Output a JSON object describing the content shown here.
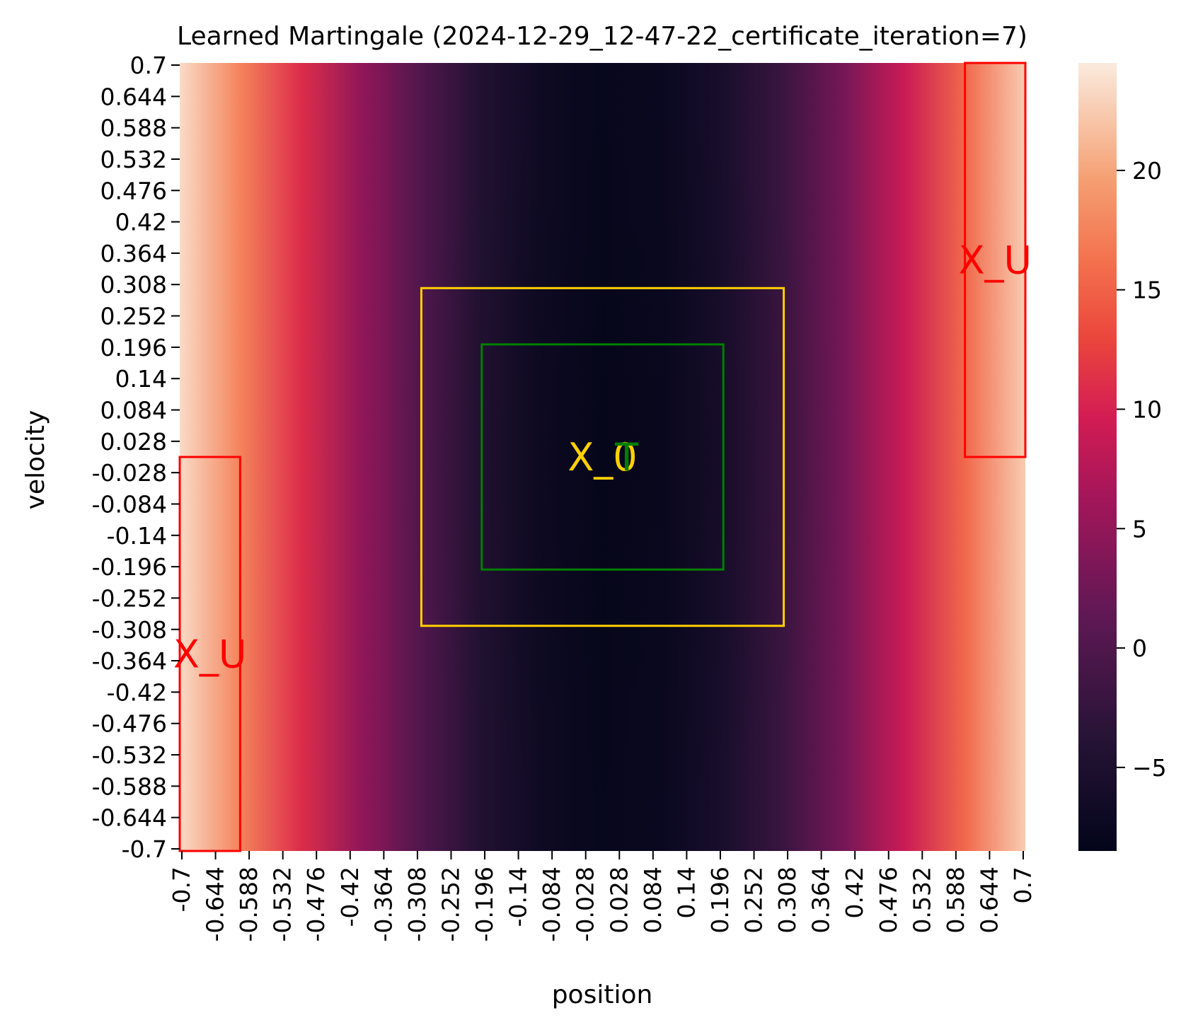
{
  "chart_data": {
    "type": "heatmap",
    "title": "Learned Martingale (2024-12-29_12-47-22_certificate_iteration=7)",
    "xlabel": "position",
    "ylabel": "velocity",
    "x_ticks": [
      "-0.7",
      "-0.644",
      "-0.588",
      "-0.532",
      "-0.476",
      "-0.42",
      "-0.364",
      "-0.308",
      "-0.252",
      "-0.196",
      "-0.14",
      "-0.084",
      "-0.028",
      "0.028",
      "0.084",
      "0.14",
      "0.196",
      "0.252",
      "0.308",
      "0.364",
      "0.42",
      "0.476",
      "0.532",
      "0.588",
      "0.644",
      "0.7"
    ],
    "y_ticks": [
      "0.7",
      "0.644",
      "0.588",
      "0.532",
      "0.476",
      "0.42",
      "0.364",
      "0.308",
      "0.252",
      "0.196",
      "0.14",
      "0.084",
      "0.028",
      "-0.028",
      "-0.084",
      "-0.14",
      "-0.196",
      "-0.252",
      "-0.308",
      "-0.364",
      "-0.42",
      "-0.476",
      "-0.532",
      "-0.588",
      "-0.644",
      "-0.7"
    ],
    "xlim": [
      -0.7,
      0.7
    ],
    "ylim": [
      -0.7,
      0.7
    ],
    "colormap": "rocket",
    "colorbar": {
      "min": -8.5,
      "max": 24.5,
      "ticks": [
        "20",
        "15",
        "10",
        "5",
        "0",
        "−5"
      ],
      "tick_values": [
        20,
        15,
        10,
        5,
        0,
        -5
      ]
    },
    "value_profile": {
      "description": "value mostly depends on position; minimum near position 0.03, rising toward both edges",
      "position_samples": [
        -0.7,
        -0.6,
        -0.5,
        -0.4,
        -0.3,
        -0.2,
        -0.1,
        0.0,
        0.1,
        0.2,
        0.3,
        0.4,
        0.5,
        0.6,
        0.7
      ],
      "values_at_velocity_0": [
        23.5,
        17.5,
        11.0,
        5.0,
        0.0,
        -4.5,
        -7.0,
        -8.0,
        -7.5,
        -5.5,
        -2.0,
        3.0,
        9.0,
        15.5,
        22.5
      ]
    },
    "regions": [
      {
        "label": "X_U",
        "color": "#ff0000",
        "x": [
          -0.7,
          -0.6
        ],
        "y": [
          -0.7,
          0.0
        ],
        "label_at": [
          -0.65,
          -0.35
        ]
      },
      {
        "label": "X_U",
        "color": "#ff0000",
        "x": [
          0.6,
          0.7
        ],
        "y": [
          0.0,
          0.7
        ],
        "label_at": [
          0.65,
          0.35
        ]
      },
      {
        "label": "X_0",
        "color": "#ffd000",
        "x": [
          -0.3,
          0.3
        ],
        "y": [
          -0.3,
          0.3
        ],
        "label_at": [
          0.0,
          0.0
        ]
      },
      {
        "label": "T",
        "color": "#008000",
        "x": [
          -0.2,
          0.2
        ],
        "y": [
          -0.2,
          0.2
        ],
        "label_at": [
          0.04,
          0.0
        ]
      }
    ]
  }
}
